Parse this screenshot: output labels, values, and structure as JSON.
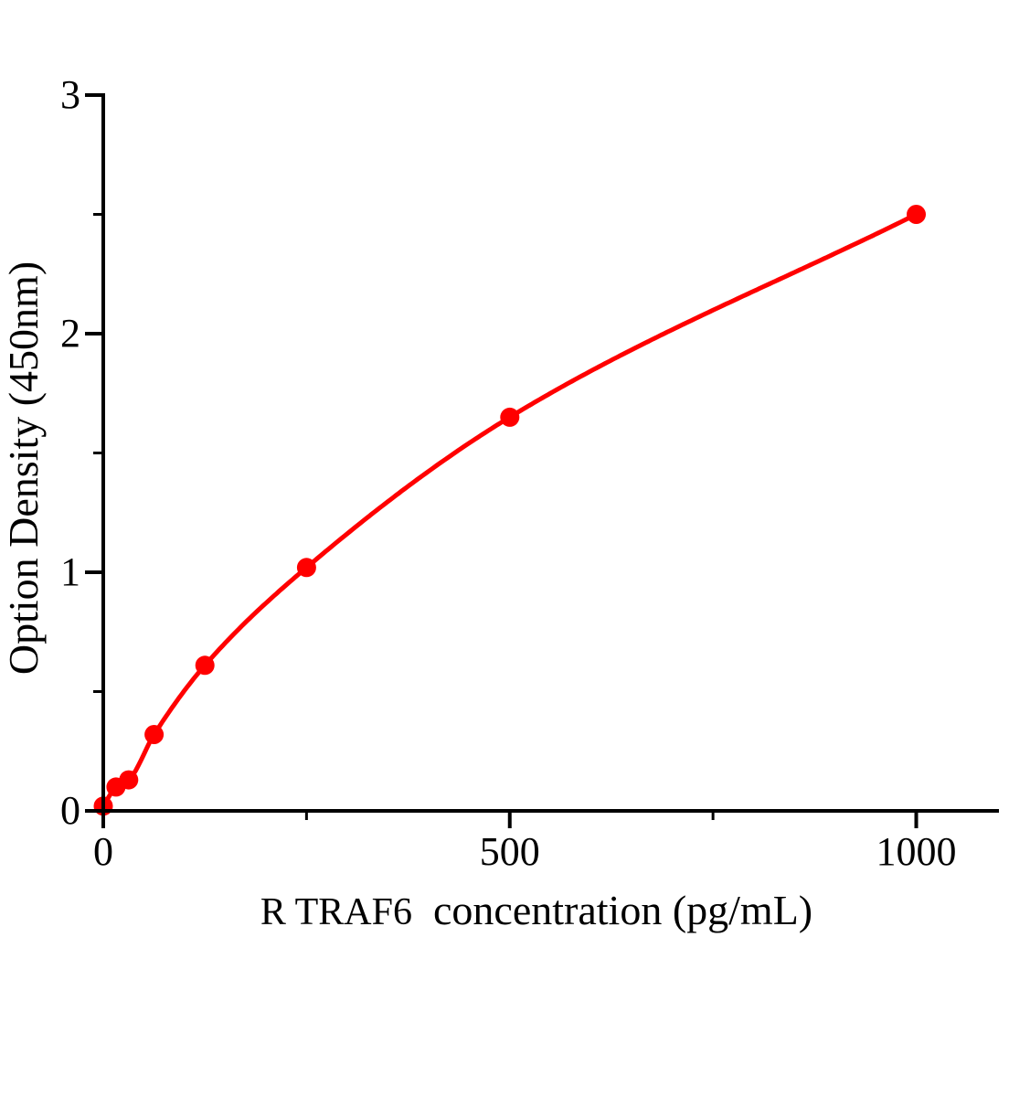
{
  "figure": {
    "background": "#ffffff",
    "axis_color": "#000000",
    "curve_color": "#ff0000",
    "marker_color": "#ff0000"
  },
  "chart_data": {
    "type": "line",
    "subtype": "elisa-standard-curve-scatter-line",
    "x": [
      0,
      15.6,
      31.2,
      62.5,
      125,
      250,
      500,
      1000
    ],
    "y": [
      0.02,
      0.1,
      0.13,
      0.32,
      0.61,
      1.02,
      1.65,
      2.5
    ],
    "xlabel": "R TRAF6  concentration (pg/mL)",
    "ylabel": "Option Density (450nm)",
    "xlim": [
      0,
      1100
    ],
    "ylim": [
      0,
      3
    ],
    "x_major_ticks": [
      0,
      500,
      1000
    ],
    "x_tick_labels": [
      "0",
      "500",
      "1000"
    ],
    "x_minor_ticks": [
      250,
      750
    ],
    "y_major_ticks": [
      0,
      1,
      2,
      3
    ],
    "y_tick_labels": [
      "0",
      "1",
      "2",
      "3"
    ],
    "y_minor_ticks": [
      0.5,
      1.5,
      2.5
    ],
    "grid": false,
    "legend": "none",
    "marker": "filled-circle",
    "line_color": "#ff0000",
    "marker_color": "#ff0000"
  },
  "axis_titles": {
    "x_prefix": "R TRAF6",
    "x_rest": "  concentration (pg/mL)",
    "y": "Option Density (450nm)"
  }
}
